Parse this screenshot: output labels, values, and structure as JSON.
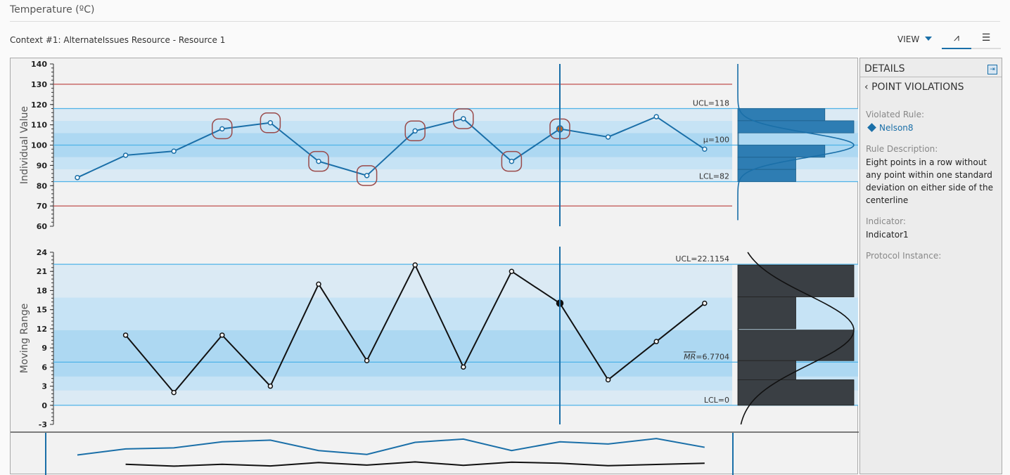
{
  "header": {
    "title": "Temperature (ºC)",
    "context": "Context #1: AlternateIssues Resource - Resource 1",
    "view_label": "VIEW",
    "tabs": [
      {
        "icon": "chart-icon",
        "glyph": "⩘"
      },
      {
        "icon": "list-icon",
        "glyph": "☰"
      }
    ]
  },
  "details": {
    "title": "DETAILS",
    "back_label": "POINT VIOLATIONS",
    "violated_rule_label": "Violated Rule:",
    "violated_rule": "Nelson8",
    "rule_description_label": "Rule Description:",
    "rule_description": "Eight points in a row without any point within one standard deviation on either side of the centerline",
    "indicator_label": "Indicator:",
    "indicator": "Indicator1",
    "protocol_instance_label": "Protocol Instance:"
  },
  "colors": {
    "series_blue": "#1a6fa8",
    "limit_red": "#c0504d",
    "limit_blue": "#4fb3e8",
    "highlight": "#c8641e",
    "violation": "#9a4a4a",
    "mr_line": "#111111",
    "hist_blue": "#2e7db3",
    "hist_dark": "#3a3f44"
  },
  "chart_data": [
    {
      "type": "line",
      "ylabel": "Individual Value",
      "ylim": [
        60,
        140
      ],
      "yticks": [
        60,
        70,
        80,
        90,
        100,
        110,
        120,
        130,
        140
      ],
      "values": [
        84,
        95,
        97,
        108,
        111,
        92,
        85,
        107,
        113,
        92,
        108,
        104,
        114,
        98
      ],
      "ucl": 118,
      "lcl": 82,
      "mean": 100,
      "spec_upper": 130,
      "spec_lower": 70,
      "ucl_label": "UCL=118",
      "mean_label": "μ=100",
      "lcl_label": "LCL=82",
      "violations": [
        3,
        4,
        5,
        6,
        7,
        8,
        9,
        10
      ],
      "selected_index": 10,
      "histogram": [
        {
          "from": 112,
          "to": 118,
          "count": 3
        },
        {
          "from": 106,
          "to": 112,
          "count": 4
        },
        {
          "from": 100,
          "to": 106,
          "count": 0
        },
        {
          "from": 94,
          "to": 100,
          "count": 3
        },
        {
          "from": 88,
          "to": 94,
          "count": 2
        },
        {
          "from": 82,
          "to": 88,
          "count": 2
        }
      ]
    },
    {
      "type": "line",
      "ylabel": "Moving Range",
      "ylim": [
        -3,
        24
      ],
      "yticks": [
        -3,
        0,
        3,
        6,
        9,
        12,
        15,
        18,
        21,
        24
      ],
      "values": [
        null,
        11,
        2,
        11,
        3,
        19,
        7,
        22,
        6,
        21,
        16,
        4,
        10,
        16
      ],
      "ucl": 22.1154,
      "lcl": 0,
      "mean": 6.7704,
      "ucl_label": "UCL=22.1154",
      "mean_label_bar": "MR",
      "mean_label_rest": "=6.7704",
      "lcl_label": "LCL=0",
      "selected_index": 10,
      "histogram": [
        {
          "from": 17,
          "to": 22,
          "count": 2
        },
        {
          "from": 12,
          "to": 17,
          "count": 1
        },
        {
          "from": 11.8,
          "to": 12,
          "count": 0
        },
        {
          "from": 7,
          "to": 11.8,
          "count": 2
        },
        {
          "from": 4,
          "to": 7,
          "count": 1
        },
        {
          "from": 0,
          "to": 4,
          "count": 2
        }
      ]
    }
  ]
}
